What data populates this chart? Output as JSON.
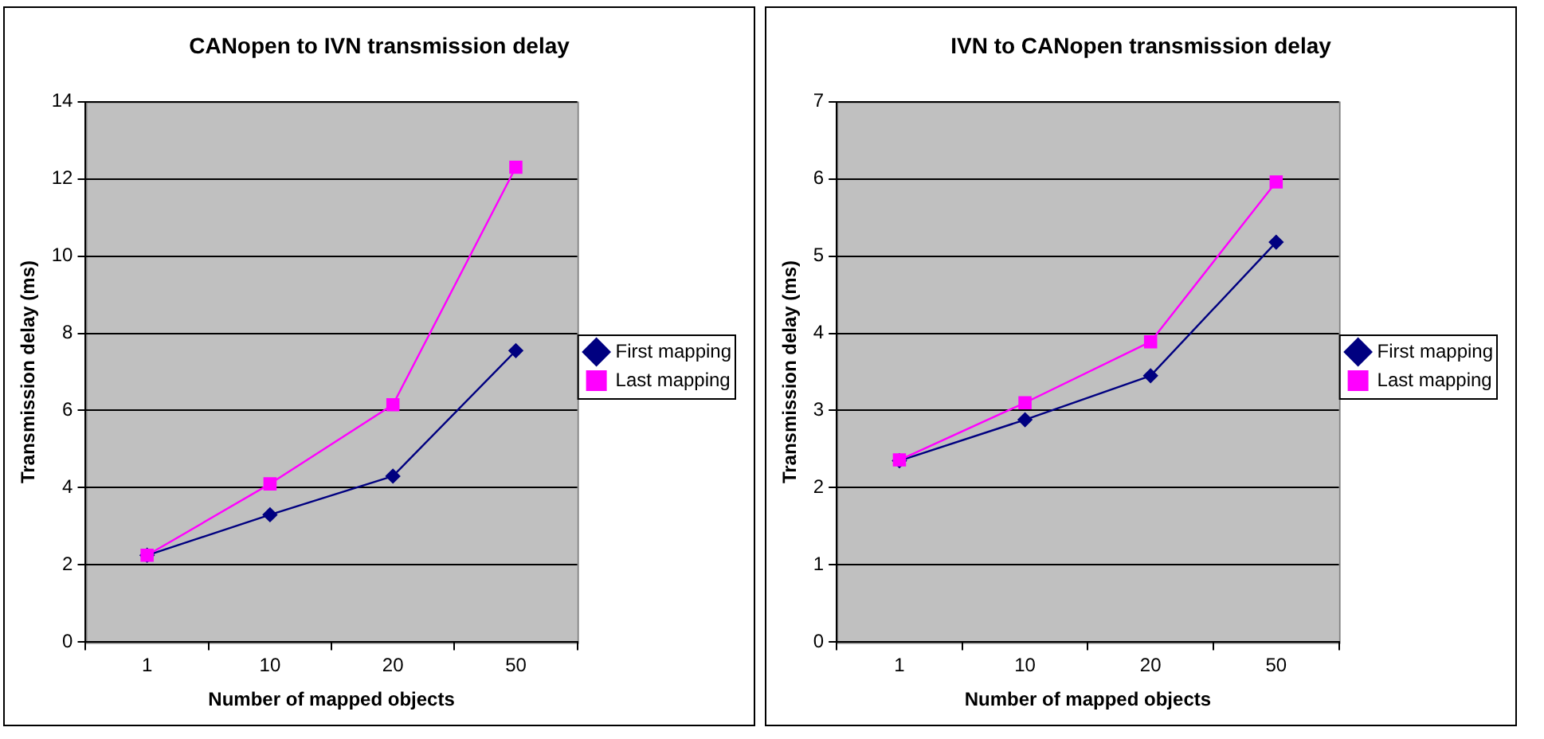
{
  "chart_data": [
    {
      "type": "line",
      "title": "CANopen to IVN transmission delay",
      "xlabel": "Number of mapped objects",
      "ylabel": "Transmission delay (ms)",
      "categories": [
        "1",
        "10",
        "20",
        "50"
      ],
      "ylim": [
        0,
        14
      ],
      "yticks": [
        0,
        2,
        4,
        6,
        8,
        10,
        12,
        14
      ],
      "grid": "y",
      "legend": "right",
      "series": [
        {
          "name": "First mapping",
          "color": "#000080",
          "marker": "diamond",
          "values": [
            2.25,
            3.3,
            4.3,
            7.55
          ]
        },
        {
          "name": "Last mapping",
          "color": "#ff00ff",
          "marker": "square",
          "values": [
            2.25,
            4.1,
            6.15,
            12.3
          ]
        }
      ]
    },
    {
      "type": "line",
      "title": "IVN to CANopen transmission delay",
      "xlabel": "Number of mapped objects",
      "ylabel": "Transmission delay (ms)",
      "categories": [
        "1",
        "10",
        "20",
        "50"
      ],
      "ylim": [
        0,
        7
      ],
      "yticks": [
        0,
        1,
        2,
        3,
        4,
        5,
        6,
        7
      ],
      "grid": "y",
      "legend": "right",
      "series": [
        {
          "name": "First mapping",
          "color": "#000080",
          "marker": "diamond",
          "values": [
            2.35,
            2.88,
            3.45,
            5.18
          ]
        },
        {
          "name": "Last mapping",
          "color": "#ff00ff",
          "marker": "square",
          "values": [
            2.36,
            3.1,
            3.89,
            5.96
          ]
        }
      ]
    }
  ]
}
